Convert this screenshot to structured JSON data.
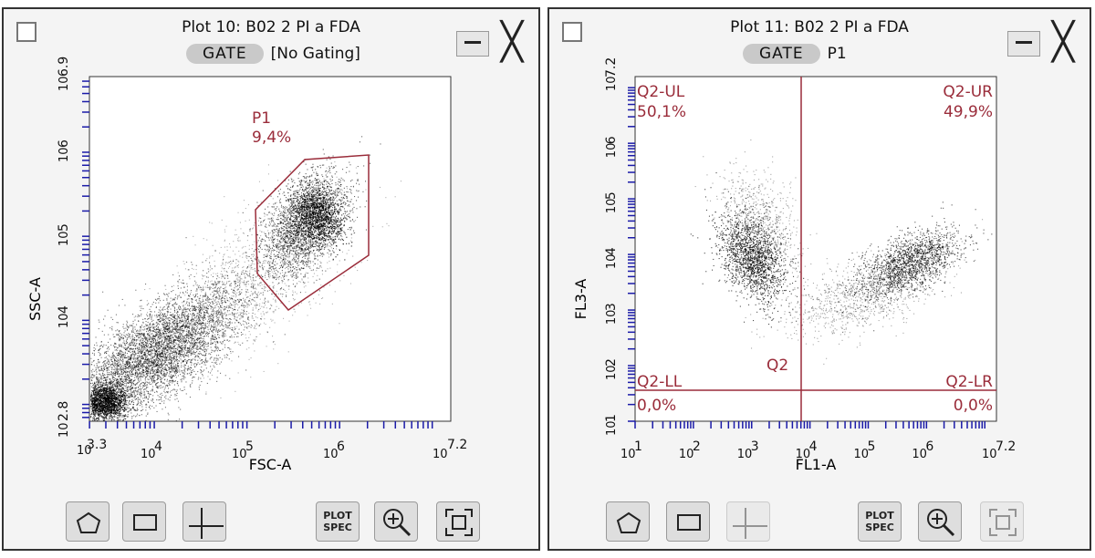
{
  "plots": [
    {
      "title": "Plot 10: B02 2 PI a FDA",
      "gate_button": "GATE",
      "gate_value": "[No Gating]",
      "x_axis": {
        "label": "FSC-A",
        "min_exp": 3.3,
        "max_exp": 7.2,
        "tick_labels": [
          "3.3",
          "4",
          "5",
          "6",
          "7.2"
        ]
      },
      "y_axis": {
        "label": "SSC-A",
        "min_exp": 2.8,
        "max_exp": 6.9,
        "tick_labels": [
          "2.8",
          "4",
          "5",
          "6",
          "6.9"
        ]
      },
      "gate": {
        "name": "P1",
        "percent": "9,4%"
      }
    },
    {
      "title": "Plot 11: B02 2 PI a FDA",
      "gate_button": "GATE",
      "gate_value": "P1",
      "x_axis": {
        "label": "FL1-A",
        "min_exp": 1,
        "max_exp": 7.2,
        "tick_labels": [
          "1",
          "2",
          "3",
          "4",
          "5",
          "6",
          "7.2"
        ]
      },
      "y_axis": {
        "label": "FL3-A",
        "min_exp": 1,
        "max_exp": 7.2,
        "tick_labels": [
          "1",
          "2",
          "3",
          "4",
          "5",
          "6",
          "7.2"
        ]
      },
      "quadrant": {
        "name": "Q2",
        "ul": {
          "label": "Q2-UL",
          "percent": "50,1%"
        },
        "ur": {
          "label": "Q2-UR",
          "percent": "49,9%"
        },
        "ll": {
          "label": "Q2-LL",
          "percent": "0,0%"
        },
        "lr": {
          "label": "Q2-LR",
          "percent": "0,0%"
        }
      }
    }
  ],
  "axis_base": "10",
  "toolbar": {
    "plot_spec_line1": "PLOT",
    "plot_spec_line2": "SPEC"
  },
  "icons": [
    "checkbox-icon",
    "minimize-icon",
    "close-icon",
    "polygon-gate-icon",
    "rectangle-gate-icon",
    "quadrant-gate-icon",
    "zoom-icon",
    "fit-view-icon"
  ],
  "colors": {
    "gate": "#9a2c3a",
    "axis": "#1a1aa8",
    "dots": "#000000"
  }
}
